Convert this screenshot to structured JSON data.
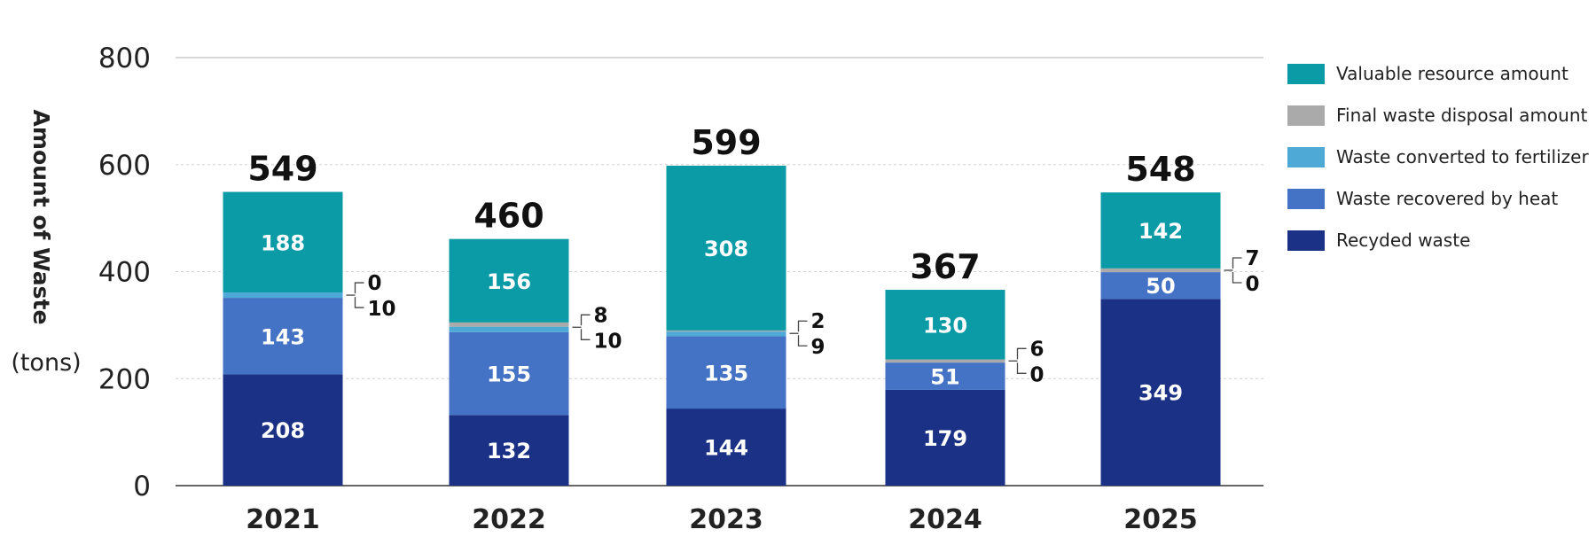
{
  "chart_data": {
    "type": "bar",
    "stacked": true,
    "categories": [
      "2021",
      "2022",
      "2023",
      "2024",
      "2025"
    ],
    "series": [
      {
        "name": "Recyded waste",
        "color": "#1a3185",
        "values": [
          208,
          132,
          144,
          179,
          349
        ]
      },
      {
        "name": "Waste recovered by heat",
        "color": "#4472c4",
        "values": [
          143,
          155,
          135,
          51,
          50
        ]
      },
      {
        "name": "Waste converted to fertilizer",
        "color": "#4fa9d7",
        "values": [
          10,
          10,
          9,
          0,
          0
        ]
      },
      {
        "name": "Final waste disposal amount",
        "color": "#aaaaaa",
        "values": [
          0,
          8,
          2,
          6,
          7
        ]
      },
      {
        "name": "Valuable resource amount",
        "color": "#0a9ba7",
        "values": [
          188,
          156,
          308,
          130,
          142
        ]
      }
    ],
    "totals": [
      549,
      460,
      599,
      367,
      548
    ],
    "ylabel": "Amount of Waste",
    "yunit": "(tons)",
    "ylim": [
      0,
      800
    ],
    "yticks": [
      0,
      200,
      400,
      600,
      800
    ],
    "grid": true,
    "legend_position": "right",
    "legend_order": [
      "Valuable resource amount",
      "Final waste disposal amount",
      "Waste converted to fertilizer",
      "Waste recovered by heat",
      "Recyded waste"
    ]
  }
}
